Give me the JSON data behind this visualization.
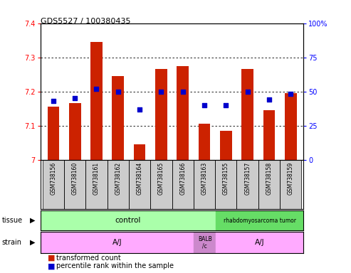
{
  "title": "GDS5527 / 100380435",
  "samples": [
    "GSM738156",
    "GSM738160",
    "GSM738161",
    "GSM738162",
    "GSM738164",
    "GSM738165",
    "GSM738166",
    "GSM738163",
    "GSM738155",
    "GSM738157",
    "GSM738158",
    "GSM738159"
  ],
  "transformed_count": [
    7.155,
    7.165,
    7.345,
    7.245,
    7.045,
    7.265,
    7.275,
    7.105,
    7.085,
    7.265,
    7.145,
    7.195
  ],
  "percentile_rank": [
    43,
    45,
    52,
    50,
    37,
    50,
    50,
    40,
    40,
    50,
    44,
    48
  ],
  "ylim_left": [
    7.0,
    7.4
  ],
  "ylim_right": [
    0,
    100
  ],
  "yticks_left": [
    7.0,
    7.1,
    7.2,
    7.3,
    7.4
  ],
  "ytick_labels_left": [
    "7",
    "7.1",
    "7.2",
    "7.3",
    "7.4"
  ],
  "yticks_right": [
    0,
    25,
    50,
    75,
    100
  ],
  "ytick_labels_right": [
    "0",
    "25",
    "50",
    "75",
    "100%"
  ],
  "bar_color": "#cc2200",
  "dot_color": "#0000cc",
  "bar_bottom": 7.0,
  "tissue_control_color": "#aaffaa",
  "tissue_tumor_color": "#66dd66",
  "strain_aj_color": "#ffaaff",
  "strain_balb_color": "#cc88cc",
  "sample_cell_color": "#cccccc",
  "legend_bar_label": "transformed count",
  "legend_dot_label": "percentile rank within the sample"
}
